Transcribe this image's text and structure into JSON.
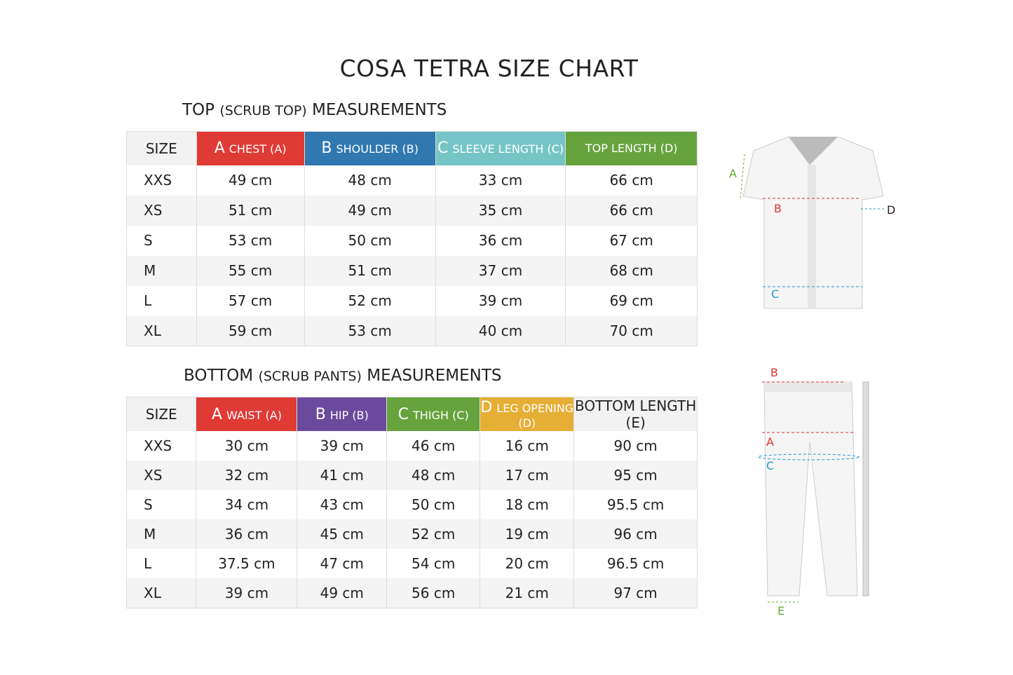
{
  "title": "COSA TETRA SIZE CHART",
  "top": {
    "heading_main": "TOP",
    "heading_sub": "(SCRUB TOP)",
    "heading_end": "MEASUREMENTS",
    "columns": [
      {
        "letter": "",
        "label": "SIZE",
        "color": "#f2f2f2"
      },
      {
        "letter": "A",
        "label": "CHEST (A)",
        "color": "#e03a35"
      },
      {
        "letter": "B",
        "label": "SHOULDER (B)",
        "color": "#2f78b0"
      },
      {
        "letter": "C",
        "label": "SLEEVE LENGTH (C)",
        "color": "#76c5c6"
      },
      {
        "letter": "",
        "label": "TOP LENGTH (D)",
        "color": "#66a33d"
      }
    ],
    "rows": [
      [
        "XXS",
        "49 cm",
        "48 cm",
        "33 cm",
        "66 cm"
      ],
      [
        "XS",
        "51 cm",
        "49 cm",
        "35 cm",
        "66 cm"
      ],
      [
        "S",
        "53 cm",
        "50 cm",
        "36 cm",
        "67 cm"
      ],
      [
        "M",
        "55 cm",
        "51 cm",
        "37 cm",
        "68 cm"
      ],
      [
        "L",
        "57 cm",
        "52 cm",
        "39 cm",
        "69 cm"
      ],
      [
        "XL",
        "59 cm",
        "53 cm",
        "40 cm",
        "70 cm"
      ]
    ]
  },
  "bottom": {
    "heading_main": "BOTTOM",
    "heading_sub": "(SCRUB PANTS)",
    "heading_end": "MEASUREMENTS",
    "columns": [
      {
        "letter": "",
        "label": "SIZE",
        "color": "#f2f2f2"
      },
      {
        "letter": "A",
        "label": "WAIST (A)",
        "color": "#e03a35"
      },
      {
        "letter": "B",
        "label": "HIP (B)",
        "color": "#6a4a9c"
      },
      {
        "letter": "C",
        "label": "THIGH (C)",
        "color": "#66a33d"
      },
      {
        "letter": "D",
        "label": "LEG OPENING (D)",
        "color": "#e6ae35"
      },
      {
        "letter": "",
        "label": "BOTTOM LENGTH (E)",
        "color": "#f2f2f2"
      }
    ],
    "rows": [
      [
        "XXS",
        "30 cm",
        "39 cm",
        "46 cm",
        "16 cm",
        "90 cm"
      ],
      [
        "XS",
        "32 cm",
        "41 cm",
        "48 cm",
        "17 cm",
        "95 cm"
      ],
      [
        "S",
        "34 cm",
        "43 cm",
        "50 cm",
        "18 cm",
        "95.5 cm"
      ],
      [
        "M",
        "36 cm",
        "45 cm",
        "52 cm",
        "19 cm",
        "96 cm"
      ],
      [
        "L",
        "37.5 cm",
        "47 cm",
        "54 cm",
        "20 cm",
        "96.5 cm"
      ],
      [
        "XL",
        "39 cm",
        "49 cm",
        "56 cm",
        "21 cm",
        "97 cm"
      ]
    ]
  },
  "diagram_top": {
    "a": "A",
    "b": "B",
    "c": "C",
    "d": "D"
  },
  "diagram_bottom": {
    "a": "A",
    "b": "B",
    "c": "C",
    "e": "E"
  }
}
